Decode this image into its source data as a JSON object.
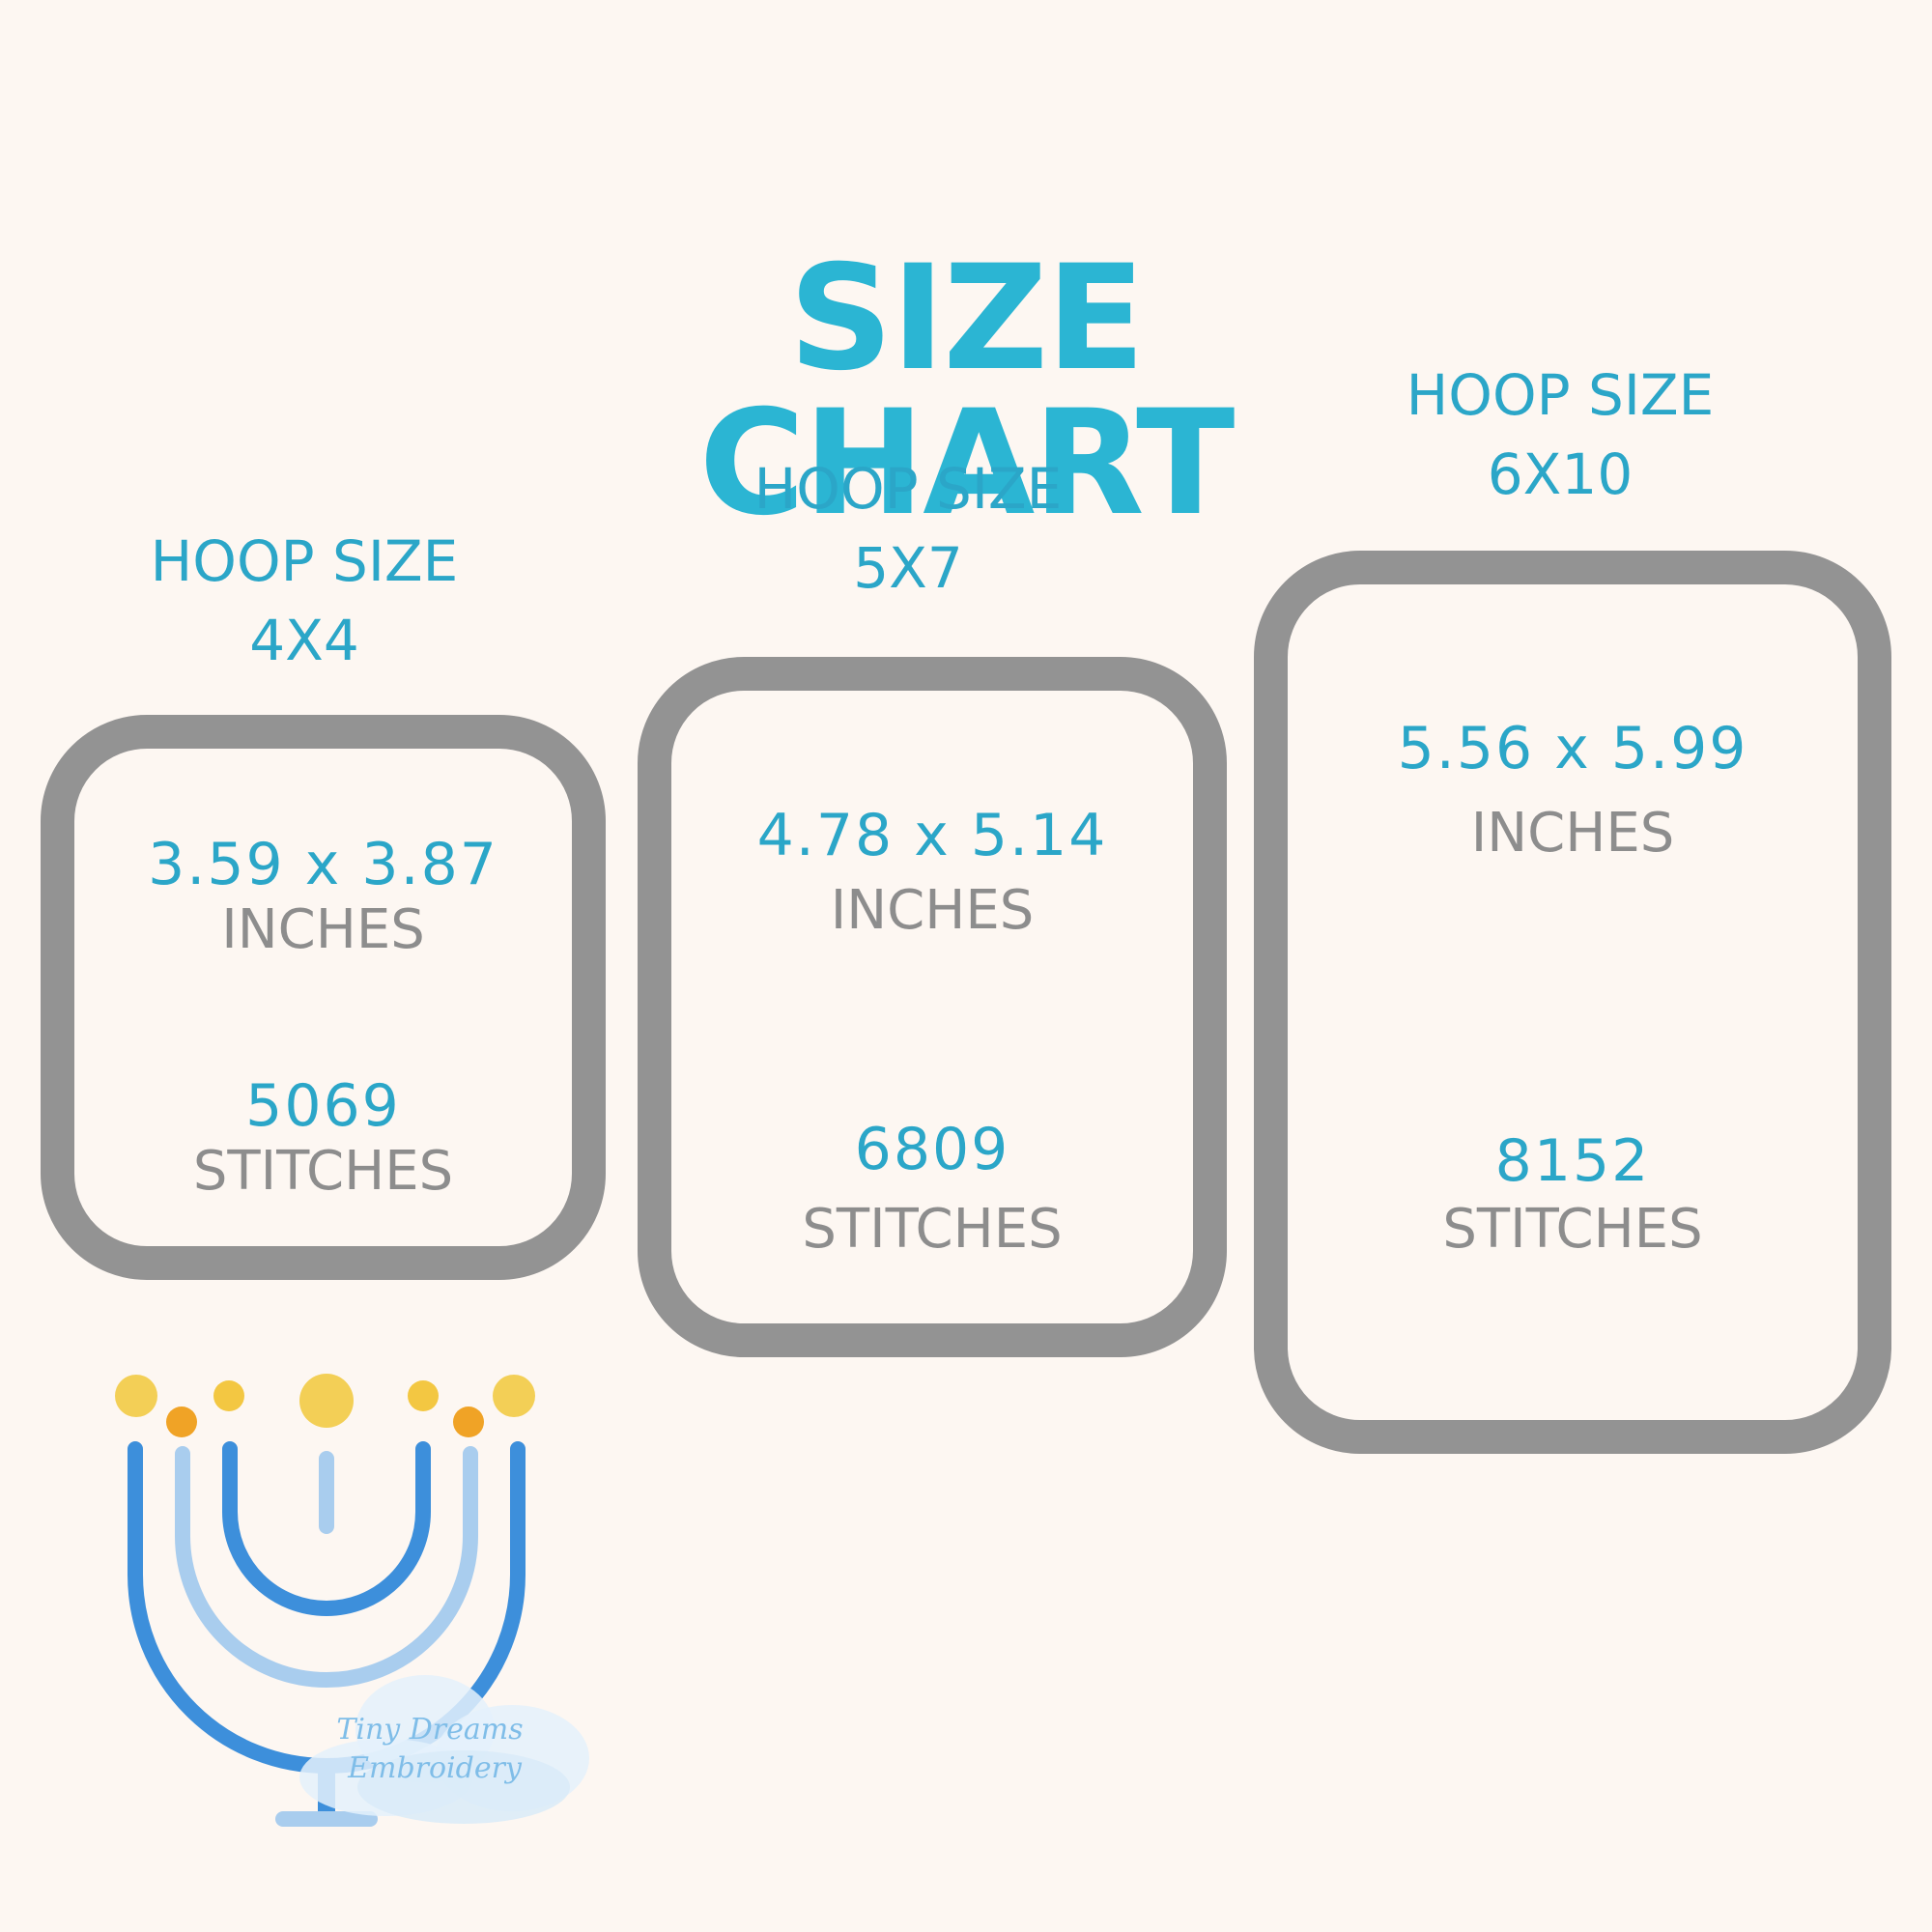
{
  "title": "SIZE CHART",
  "hoops": [
    {
      "label": "HOOP SIZE",
      "size": "4X4",
      "dimensions": "3.59 x 3.87",
      "dimensions_unit": "INCHES",
      "stitches": "5069",
      "stitches_unit": "STITCHES"
    },
    {
      "label": "HOOP SIZE",
      "size": "5X7",
      "dimensions": "4.78 x 5.14",
      "dimensions_unit": "INCHES",
      "stitches": "6809",
      "stitches_unit": "STITCHES"
    },
    {
      "label": "HOOP SIZE",
      "size": "6X10",
      "dimensions": "5.56 x 5.99",
      "dimensions_unit": "INCHES",
      "stitches": "8152",
      "stitches_unit": "STITCHES"
    }
  ],
  "watermark": {
    "line1": "Tiny Dreams",
    "line2": "Embroidery"
  },
  "colors": {
    "accent": "#2ba6c8",
    "frame": "#939393",
    "background": "#fdf7f2"
  },
  "illustration": "menorah-icon"
}
